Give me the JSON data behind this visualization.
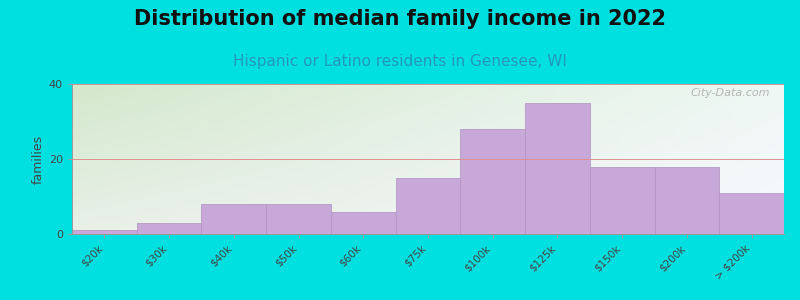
{
  "title": "Distribution of median family income in 2022",
  "subtitle": "Hispanic or Latino residents in Genesee, WI",
  "categories": [
    "$20k",
    "$30k",
    "$40k",
    "$50k",
    "$60k",
    "$75k",
    "$100k",
    "$125k",
    "$150k",
    "$200k",
    "> $200k"
  ],
  "values": [
    1,
    3,
    8,
    8,
    6,
    15,
    28,
    35,
    18,
    18,
    11
  ],
  "bar_color": "#c8a8d8",
  "bar_edgecolor": "#b090c0",
  "ylim": [
    0,
    40
  ],
  "yticks": [
    0,
    20,
    40
  ],
  "ylabel": "families",
  "outer_bg": "#00e0e0",
  "plot_bg_topleft": "#d4e8cc",
  "plot_bg_topright": "#eef8f4",
  "plot_bg_bottomright": "#f8f8ff",
  "title_fontsize": 15,
  "subtitle_fontsize": 11,
  "subtitle_color": "#2299bb",
  "watermark": "City-Data.com"
}
